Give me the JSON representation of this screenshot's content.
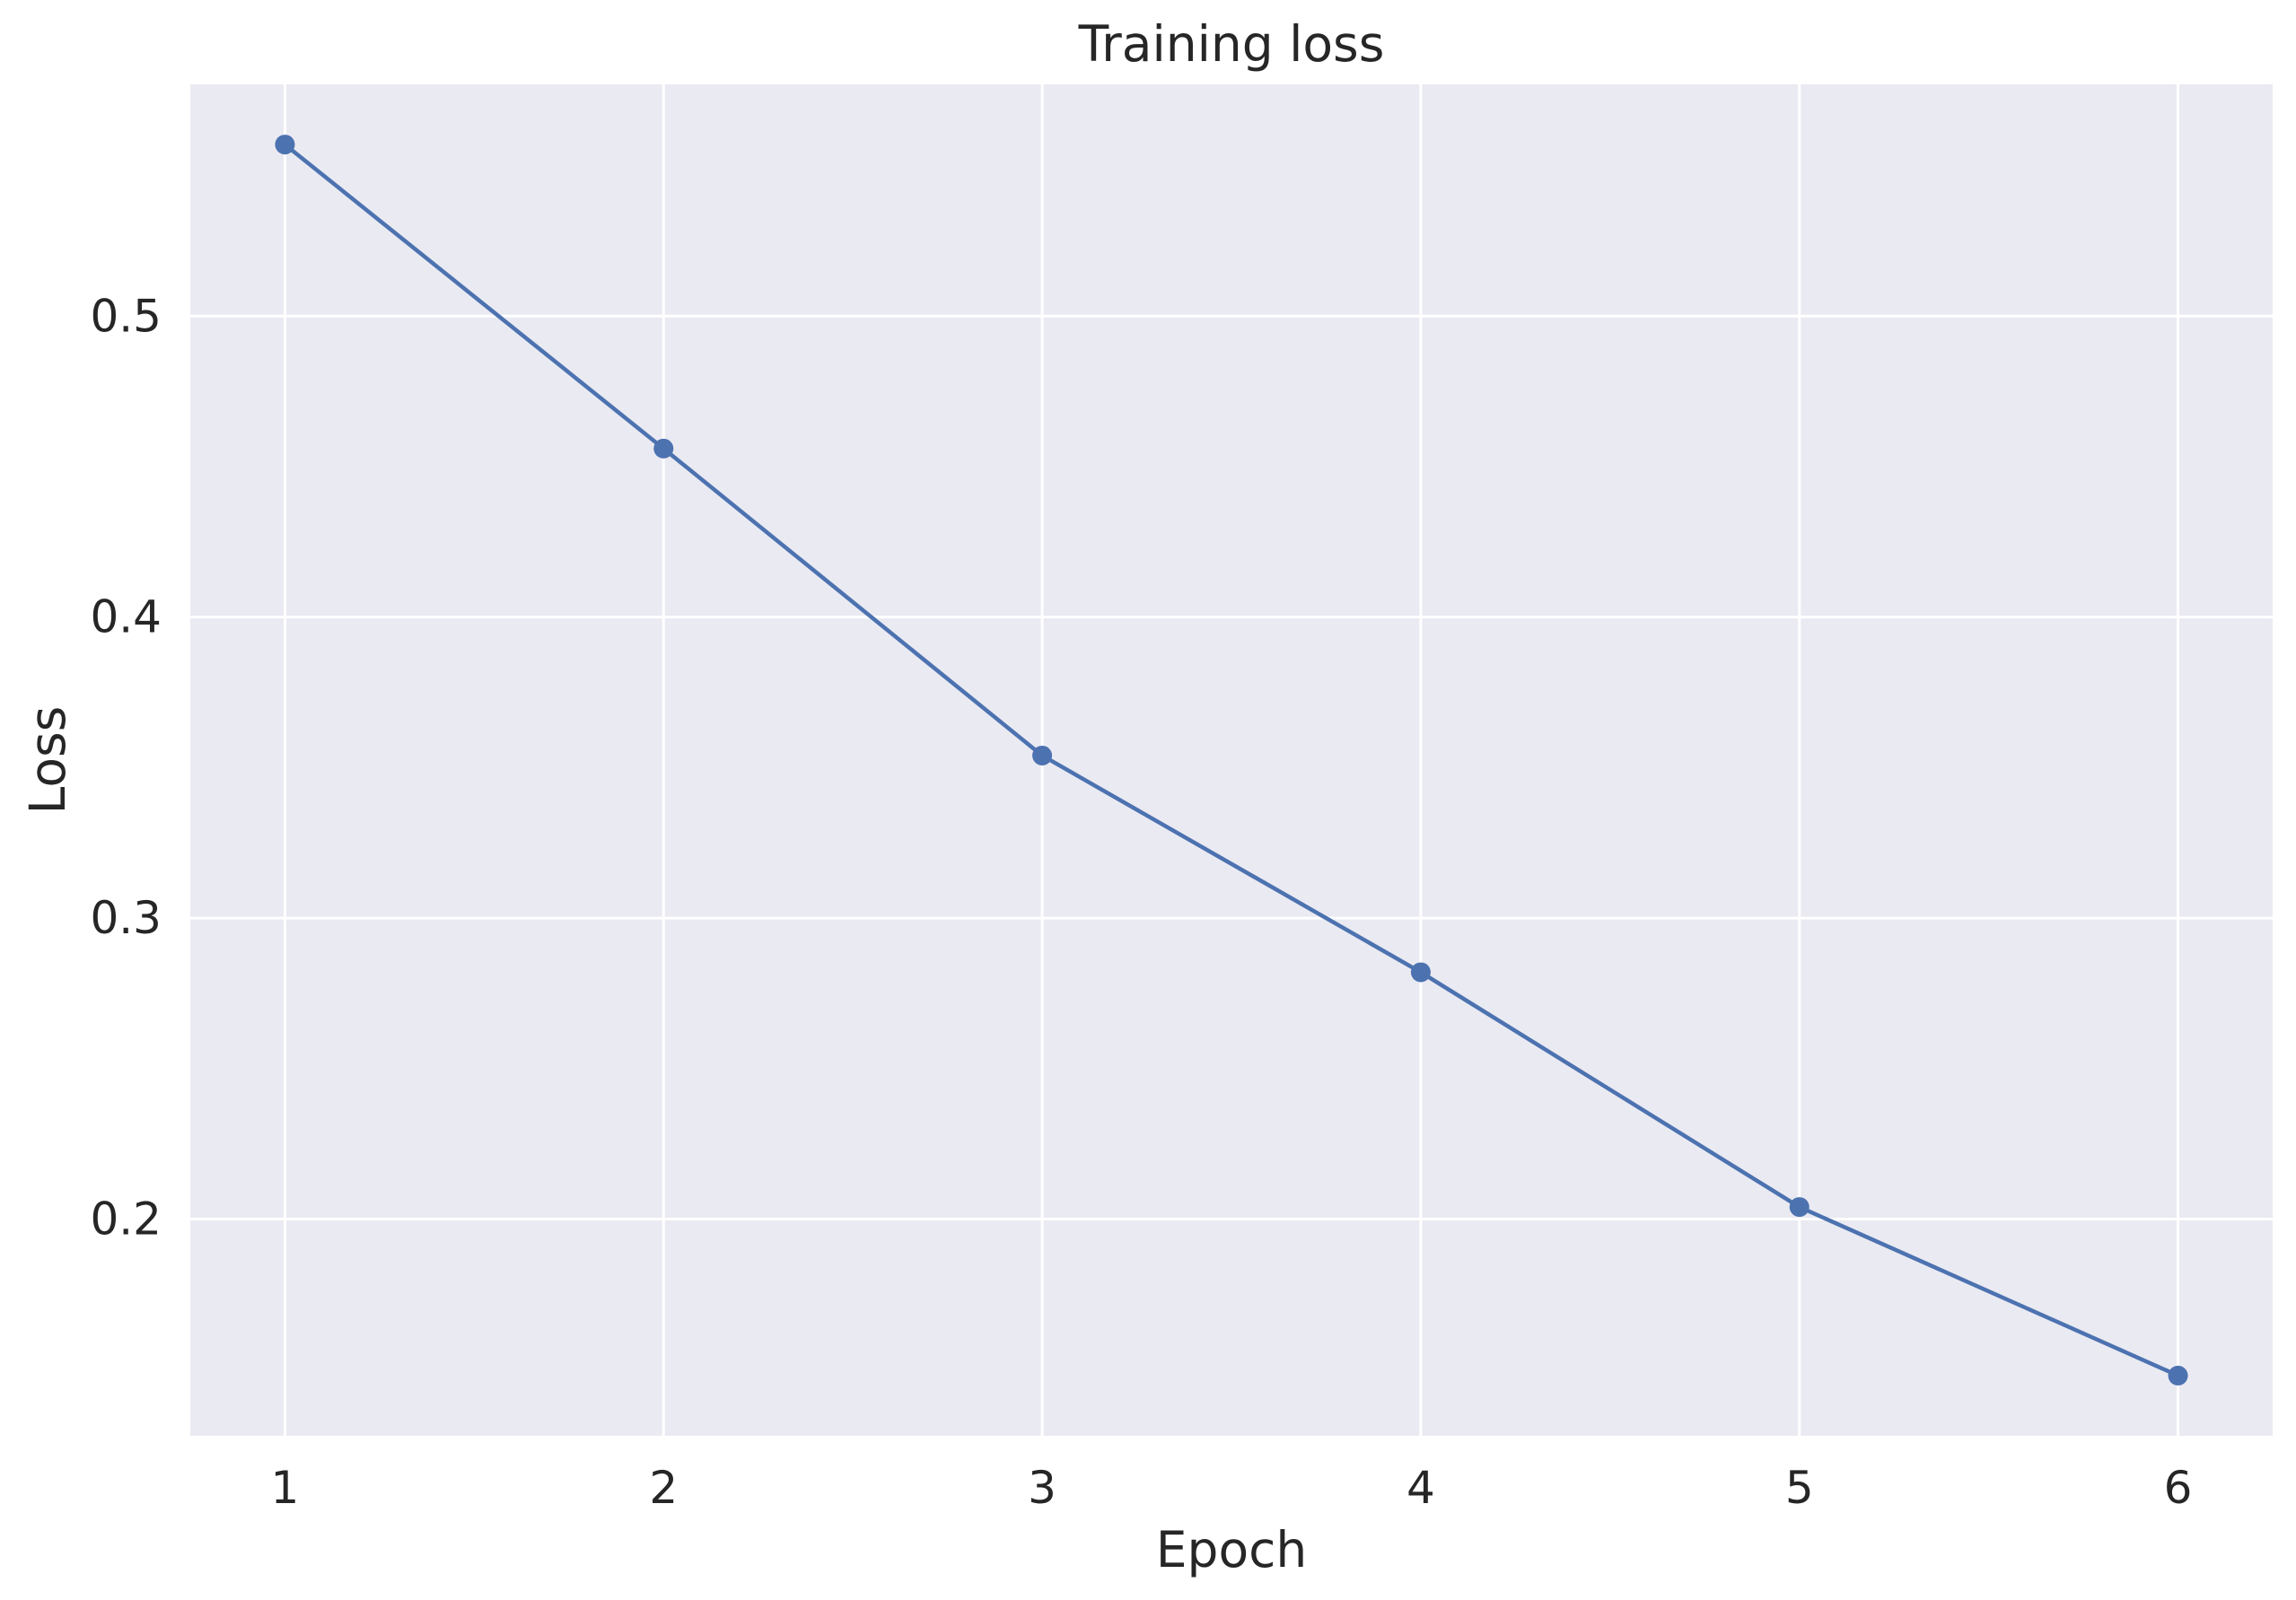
{
  "chart_data": {
    "type": "line",
    "title": "Training loss",
    "xlabel": "Epoch",
    "ylabel": "Loss",
    "x": [
      1,
      2,
      3,
      4,
      5,
      6
    ],
    "series": [
      {
        "values": [
          0.557,
          0.456,
          0.354,
          0.282,
          0.204,
          0.148
        ],
        "marker": "circle"
      }
    ],
    "xticks": [
      1,
      2,
      3,
      4,
      5,
      6
    ],
    "xtick_labels": [
      "1",
      "2",
      "3",
      "4",
      "5",
      "6"
    ],
    "yticks": [
      0.2,
      0.3,
      0.4,
      0.5
    ],
    "ytick_labels": [
      "0.2",
      "0.3",
      "0.4",
      "0.5"
    ],
    "xlim": [
      0.75,
      6.25
    ],
    "ylim": [
      0.128,
      0.577
    ],
    "grid": true,
    "legend": "none",
    "colors": {
      "line": "#4c72b0",
      "plot_background": "#eaeaf2",
      "grid": "#ffffff",
      "text": "#262626"
    }
  }
}
